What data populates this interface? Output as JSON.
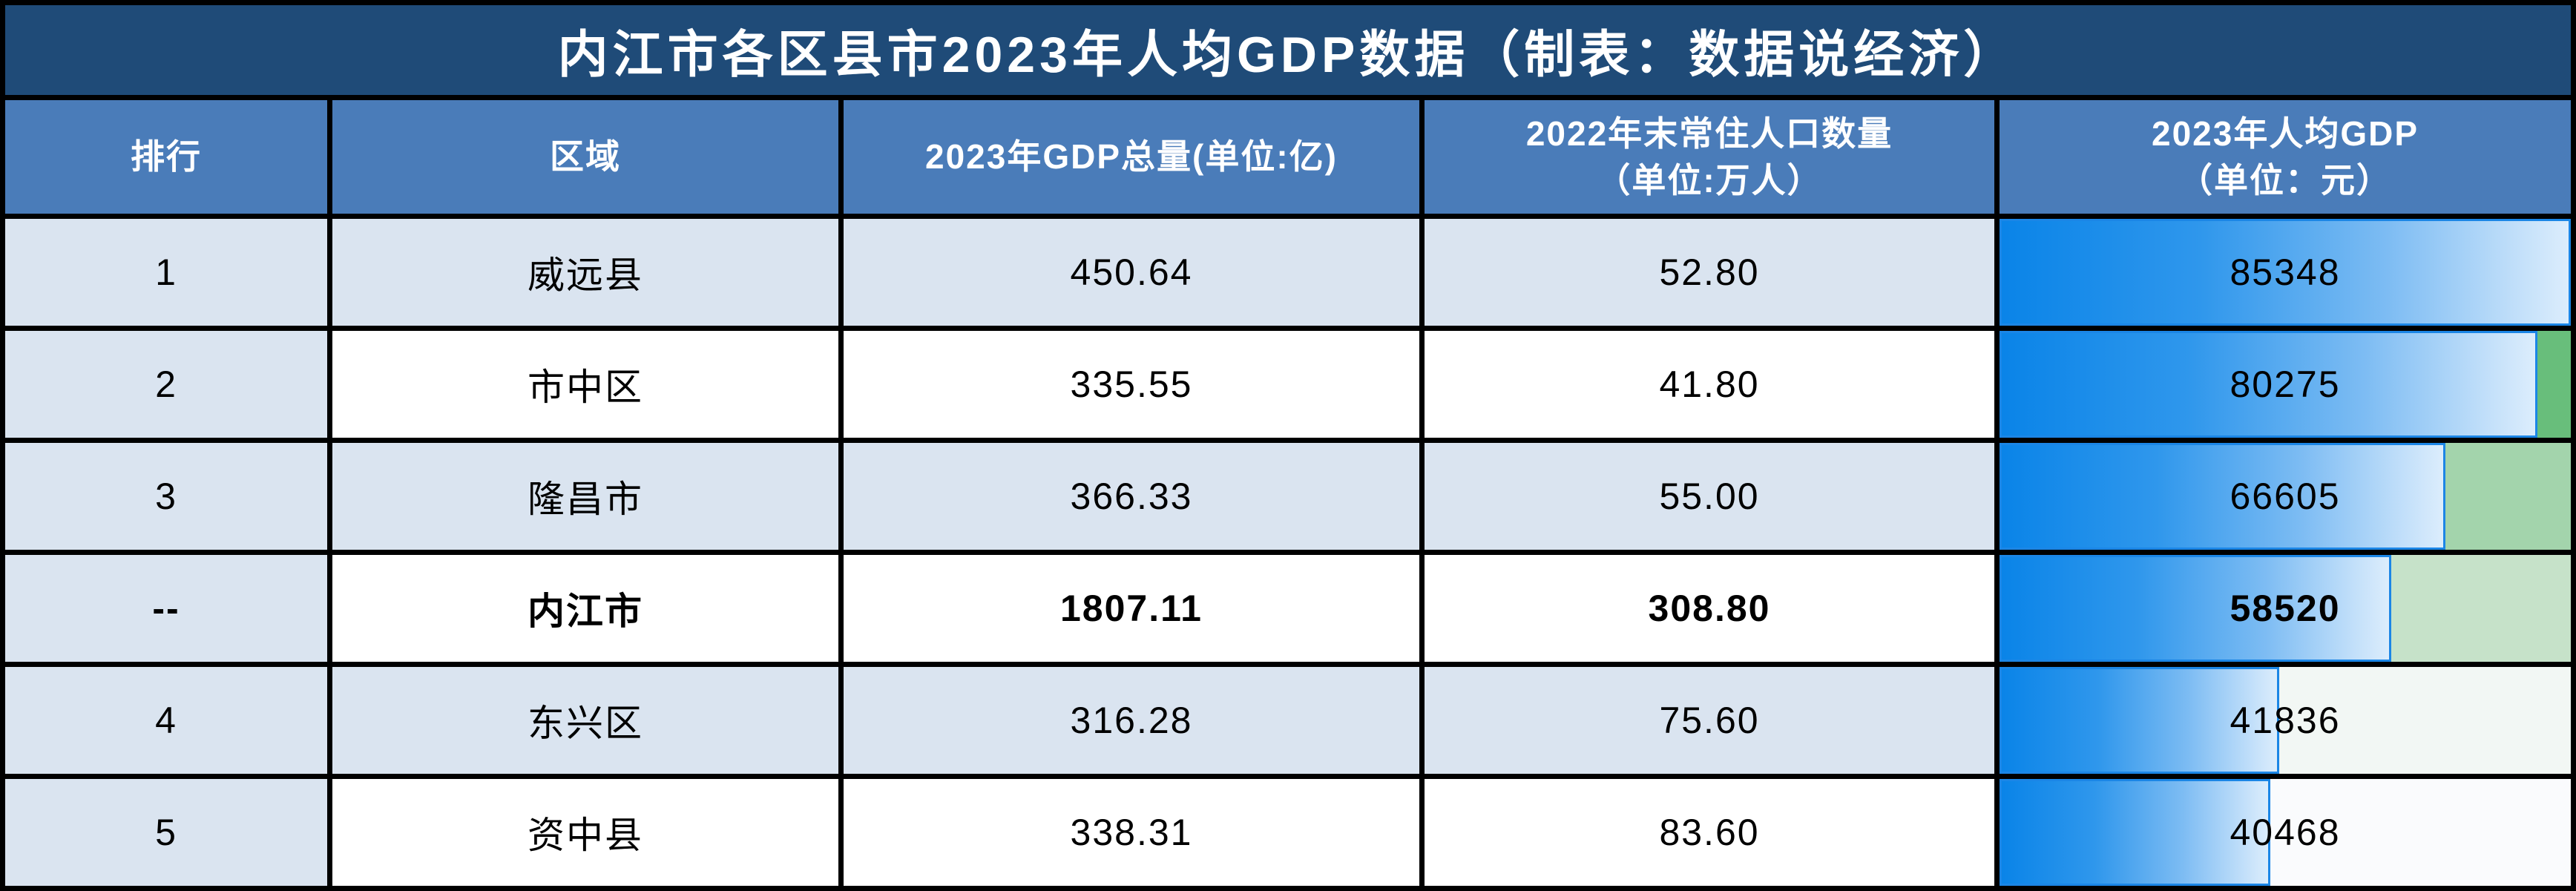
{
  "title": "内江市各区县市2023年人均GDP数据（制表：数据说经济）",
  "header": {
    "rank": "排行",
    "region": "区域",
    "gdp": "2023年GDP总量(单位:亿)",
    "population": "2022年末常住人口数量\n（单位:万人）",
    "per_capita": "2023年人均GDP\n（单位：元）"
  },
  "rows": [
    {
      "rank": "1",
      "region": "威远县",
      "gdp": "450.64",
      "population": "52.80",
      "per_capita": "85348",
      "bar_pct": 100,
      "scale_bg": "#8fcb9b",
      "row_bg": "#dae4f0",
      "bold": false
    },
    {
      "rank": "2",
      "region": "市中区",
      "gdp": "335.55",
      "population": "41.80",
      "per_capita": "80275",
      "bar_pct": 94.1,
      "scale_bg": "#68be7b",
      "row_bg": "#ffffff",
      "bold": false
    },
    {
      "rank": "3",
      "region": "隆昌市",
      "gdp": "366.33",
      "population": "55.00",
      "per_capita": "66605",
      "bar_pct": 78.0,
      "scale_bg": "#a3d4ac",
      "row_bg": "#dae4f0",
      "bold": false
    },
    {
      "rank": "--",
      "region": "内江市",
      "gdp": "1807.11",
      "population": "308.80",
      "per_capita": "58520",
      "bar_pct": 68.6,
      "scale_bg": "#c6e2c9",
      "row_bg": "#ffffff",
      "bold": true
    },
    {
      "rank": "4",
      "region": "东兴区",
      "gdp": "316.28",
      "population": "75.60",
      "per_capita": "41836",
      "bar_pct": 49.0,
      "scale_bg": "#f2f7f4",
      "row_bg": "#dae4f0",
      "bold": false
    },
    {
      "rank": "5",
      "region": "资中县",
      "gdp": "338.31",
      "population": "83.60",
      "per_capita": "40468",
      "bar_pct": 47.4,
      "scale_bg": "#fafbfd",
      "row_bg": "#ffffff",
      "bold": false
    }
  ],
  "colors": {
    "title_bg": "#1f4b78",
    "header_bg": "#4a7cb9",
    "rank_col_bg": "#dae4f0",
    "grid_line": "#000000",
    "bar_deep_blue": "#0a84e8",
    "bar_light_blue": "#dcedfc",
    "bar_border": "#1b86e6"
  },
  "chart_data": {
    "type": "table",
    "title": "内江市各区县市2023年人均GDP数据（制表：数据说经济）",
    "columns": [
      "排行",
      "区域",
      "2023年GDP总量(单位:亿)",
      "2022年末常住人口数量（单位:万人）",
      "2023年人均GDP（单位：元）"
    ],
    "rows": [
      [
        "1",
        "威远县",
        450.64,
        52.8,
        85348
      ],
      [
        "2",
        "市中区",
        335.55,
        41.8,
        80275
      ],
      [
        "3",
        "隆昌市",
        366.33,
        55.0,
        66605
      ],
      [
        "--",
        "内江市",
        1807.11,
        308.8,
        58520
      ],
      [
        "4",
        "东兴区",
        316.28,
        75.6,
        41836
      ],
      [
        "5",
        "资中县",
        338.31,
        83.6,
        40468
      ]
    ],
    "notes": {
      "bar_column": "2023年人均GDP（单位：元）",
      "bar_style": "blue gradient data bar, length proportional to value",
      "bar_max": 85348,
      "color_scale": "green-to-white background scale on per-capita column, greener = higher value",
      "bold_row": "内江市 aggregate row is bold"
    }
  }
}
